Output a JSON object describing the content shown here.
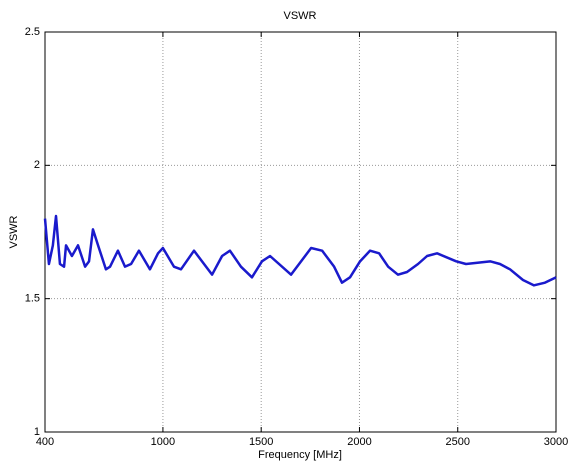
{
  "chart_data": {
    "type": "line",
    "title": "VSWR",
    "x_label": "Frequency [MHz]",
    "y_label": "VSWR",
    "xlim": [
      400,
      3000
    ],
    "ylim": [
      1,
      2.5
    ],
    "xticks": [
      400,
      1000,
      1500,
      2000,
      2500,
      3000
    ],
    "yticks": [
      1,
      1.5,
      2,
      2.5
    ],
    "grid": true,
    "series": [
      {
        "name": "VSWR",
        "color": "#1a1acc",
        "x": [
          400,
          420,
          440,
          456,
          476,
          497,
          507,
          537,
          568,
          604,
          624,
          644,
          670,
          710,
          731,
          771,
          807,
          838,
          878,
          934,
          975,
          1000,
          1056,
          1092,
          1158,
          1250,
          1301,
          1341,
          1397,
          1453,
          1504,
          1545,
          1652,
          1754,
          1810,
          1871,
          1911,
          1952,
          2003,
          2054,
          2100,
          2146,
          2196,
          2242,
          2298,
          2344,
          2395,
          2492,
          2542,
          2665,
          2715,
          2766,
          2832,
          2888,
          2944,
          3000
        ],
        "values": [
          1.8,
          1.63,
          1.7,
          1.81,
          1.63,
          1.62,
          1.7,
          1.66,
          1.7,
          1.62,
          1.64,
          1.76,
          1.7,
          1.61,
          1.62,
          1.68,
          1.62,
          1.63,
          1.68,
          1.61,
          1.67,
          1.69,
          1.62,
          1.61,
          1.68,
          1.59,
          1.66,
          1.68,
          1.62,
          1.58,
          1.64,
          1.66,
          1.59,
          1.69,
          1.68,
          1.62,
          1.56,
          1.58,
          1.64,
          1.68,
          1.67,
          1.62,
          1.59,
          1.6,
          1.63,
          1.66,
          1.67,
          1.64,
          1.63,
          1.64,
          1.63,
          1.61,
          1.57,
          1.55,
          1.56,
          1.58
        ]
      }
    ]
  }
}
